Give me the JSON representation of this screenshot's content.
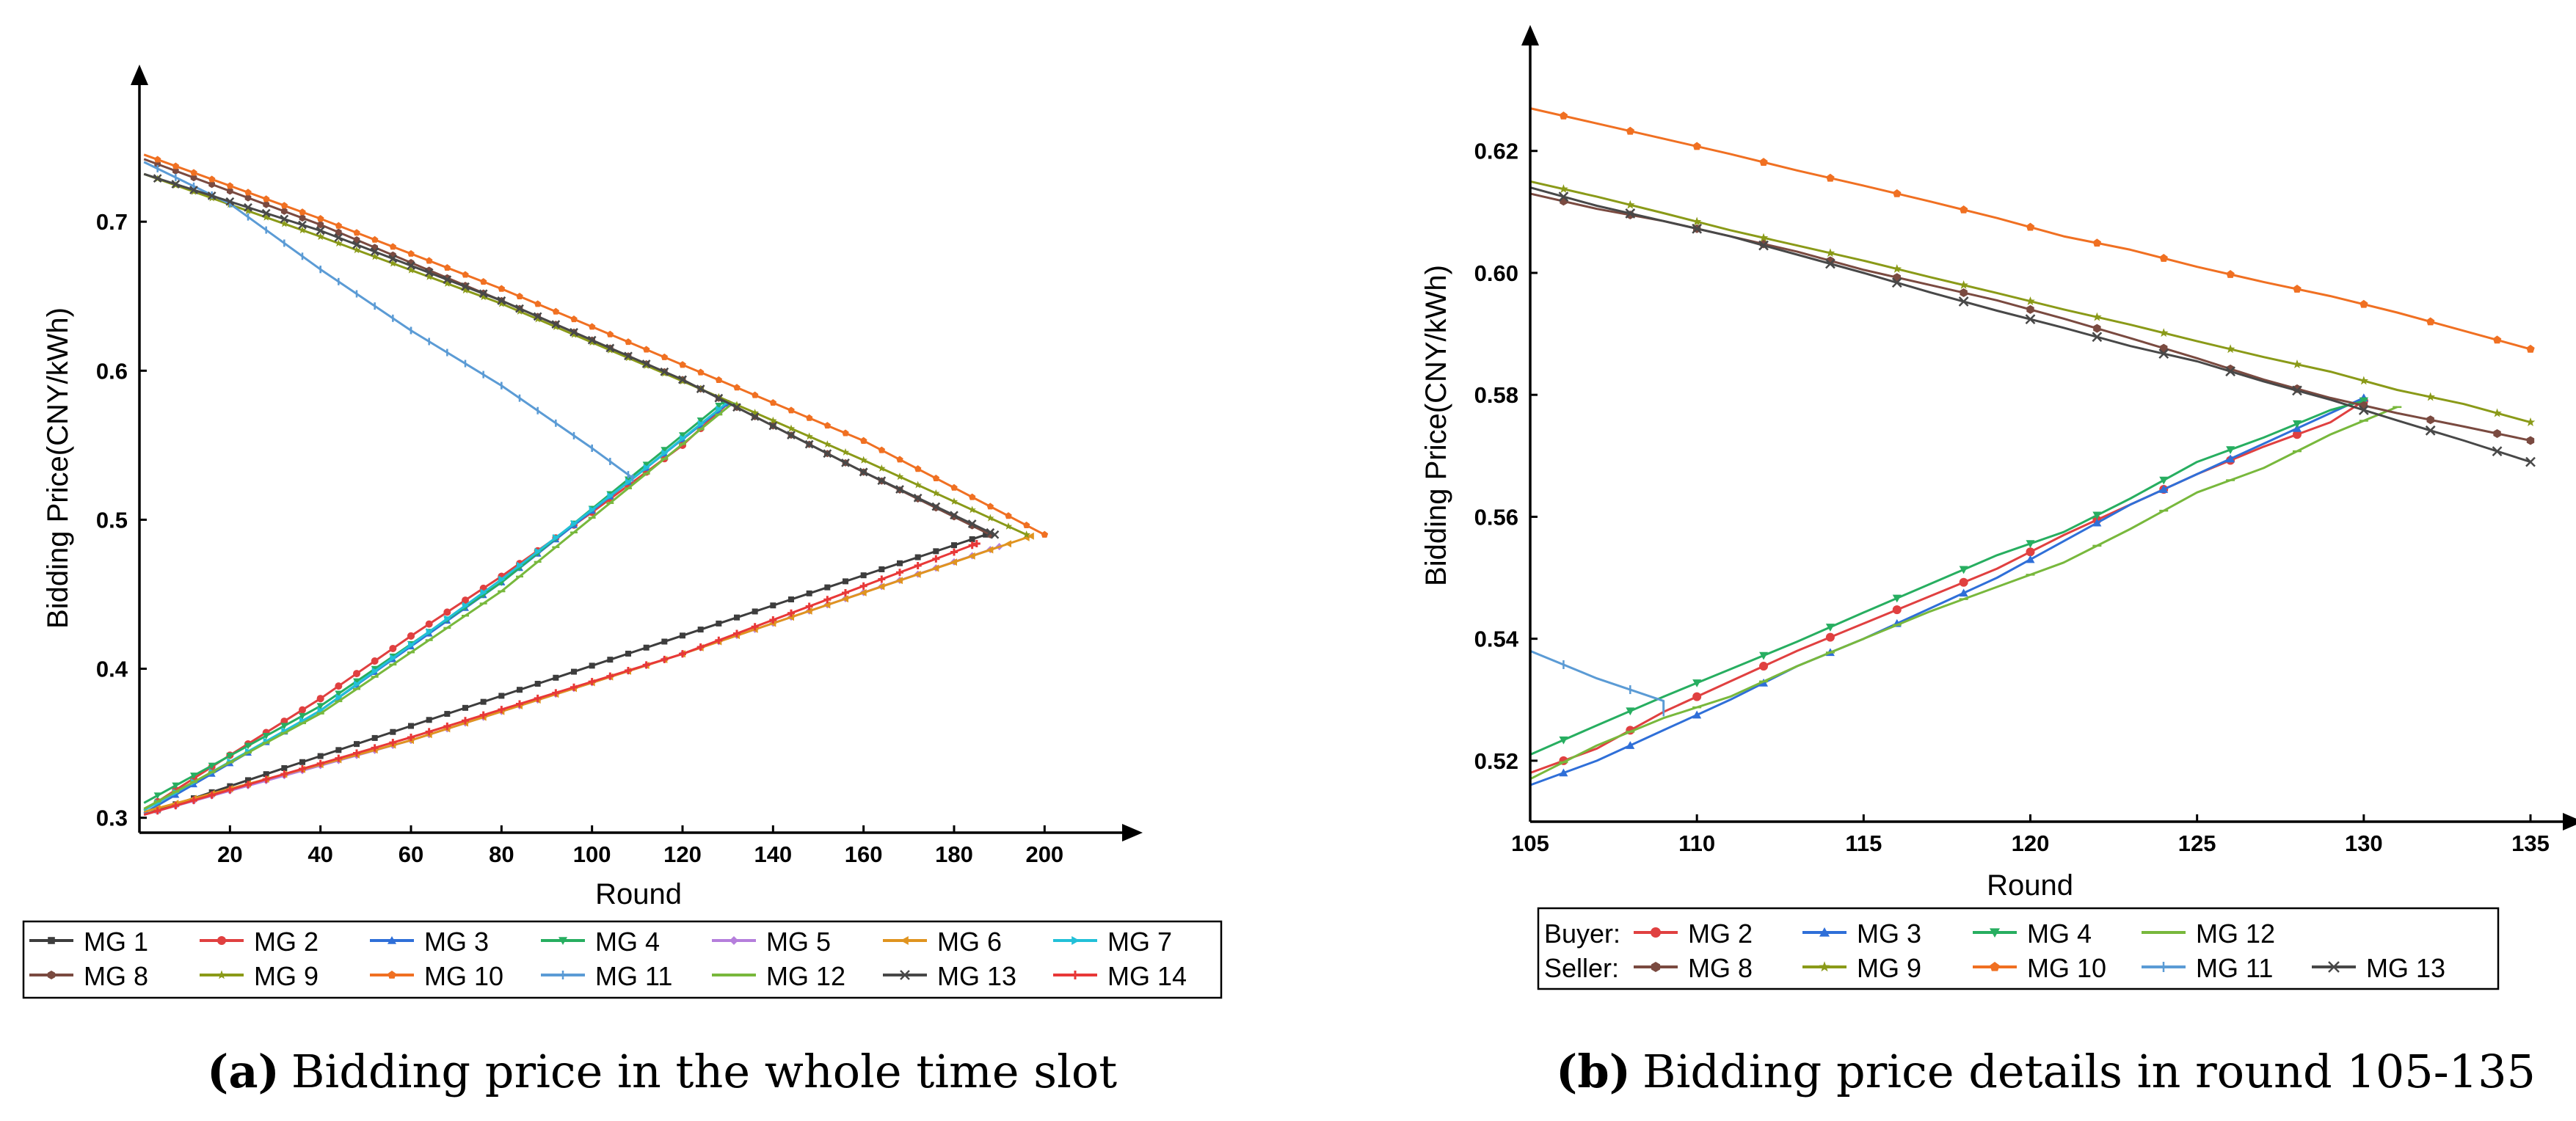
{
  "chart_data": [
    {
      "id": "a",
      "type": "line",
      "xlabel": "Round",
      "ylabel": "Bidding Price(CNY/kWh)",
      "xlim": [
        0,
        210
      ],
      "ylim": [
        0.29,
        0.77
      ],
      "xticks": [
        20,
        40,
        60,
        80,
        100,
        120,
        140,
        160,
        180,
        200
      ],
      "yticks": [
        0.3,
        0.4,
        0.5,
        0.6,
        0.7
      ],
      "xtick_labels": [
        "20",
        "40",
        "60",
        "80",
        "100",
        "120",
        "140",
        "160",
        "180",
        "200"
      ],
      "ytick_labels": [
        "0.3",
        "0.4",
        "0.5",
        "0.6",
        "0.7"
      ],
      "legend": [
        [
          "MG 1",
          "MG 2",
          "MG 3",
          "MG 4",
          "MG 5",
          "MG 6",
          "MG 7"
        ],
        [
          "MG 8",
          "MG 9",
          "MG 10",
          "MG 11",
          "MG 12",
          "MG 13",
          "MG 14"
        ]
      ],
      "series": [
        {
          "name": "MG 1",
          "color": "#3d3d3d",
          "marker": "square",
          "points": [
            [
              1,
              0.302
            ],
            [
              187,
              0.49
            ]
          ]
        },
        {
          "name": "MG 2",
          "color": "#e04040",
          "marker": "circle",
          "points": [
            [
              1,
              0.305
            ],
            [
              20,
              0.342
            ],
            [
              40,
              0.38
            ],
            [
              60,
              0.422
            ],
            [
              80,
              0.462
            ],
            [
              100,
              0.505
            ],
            [
              120,
              0.55
            ],
            [
              130,
              0.578
            ]
          ]
        },
        {
          "name": "MG 3",
          "color": "#2f6fd8",
          "marker": "triangle",
          "points": [
            [
              1,
              0.303
            ],
            [
              40,
              0.372
            ],
            [
              80,
              0.458
            ],
            [
              110,
              0.53
            ],
            [
              130,
              0.578
            ]
          ]
        },
        {
          "name": "MG 4",
          "color": "#27ae60",
          "marker": "triangle-down",
          "points": [
            [
              1,
              0.31
            ],
            [
              40,
              0.375
            ],
            [
              80,
              0.458
            ],
            [
              110,
              0.532
            ],
            [
              129,
              0.579
            ]
          ]
        },
        {
          "name": "MG 5",
          "color": "#b57edc",
          "marker": "diamond",
          "points": [
            [
              1,
              0.302
            ],
            [
              60,
              0.352
            ],
            [
              120,
              0.41
            ],
            [
              190,
              0.482
            ]
          ]
        },
        {
          "name": "MG 6",
          "color": "#e0941f",
          "marker": "triangle-left",
          "points": [
            [
              1,
              0.304
            ],
            [
              60,
              0.352
            ],
            [
              120,
              0.41
            ],
            [
              197,
              0.489
            ]
          ]
        },
        {
          "name": "MG 7",
          "color": "#22c0d8",
          "marker": "triangle-right",
          "points": [
            [
              1,
              0.305
            ],
            [
              40,
              0.372
            ],
            [
              80,
              0.46
            ],
            [
              110,
              0.53
            ],
            [
              130,
              0.579
            ]
          ]
        },
        {
          "name": "MG 8",
          "color": "#7a4a40",
          "marker": "hexagon",
          "points": [
            [
              1,
              0.742
            ],
            [
              40,
              0.698
            ],
            [
              80,
              0.647
            ],
            [
              120,
              0.594
            ],
            [
              160,
              0.532
            ],
            [
              188,
              0.49
            ]
          ]
        },
        {
          "name": "MG 9",
          "color": "#8a9a18",
          "marker": "star",
          "points": [
            [
              1,
              0.732
            ],
            [
              40,
              0.69
            ],
            [
              80,
              0.645
            ],
            [
              120,
              0.593
            ],
            [
              160,
              0.54
            ],
            [
              196,
              0.49
            ]
          ]
        },
        {
          "name": "MG 10",
          "color": "#f07022",
          "marker": "pentagon",
          "points": [
            [
              1,
              0.745
            ],
            [
              40,
              0.702
            ],
            [
              80,
              0.655
            ],
            [
              120,
              0.604
            ],
            [
              160,
              0.553
            ],
            [
              200,
              0.49
            ]
          ]
        },
        {
          "name": "MG 11",
          "color": "#5b9bd5",
          "marker": "vline",
          "points": [
            [
              1,
              0.74
            ],
            [
              20,
              0.712
            ],
            [
              40,
              0.668
            ],
            [
              60,
              0.627
            ],
            [
              80,
              0.59
            ],
            [
              100,
              0.548
            ],
            [
              109,
              0.528
            ]
          ]
        },
        {
          "name": "MG 12",
          "color": "#78b83c",
          "marker": "hline",
          "points": [
            [
              1,
              0.306
            ],
            [
              40,
              0.37
            ],
            [
              80,
              0.452
            ],
            [
              110,
              0.526
            ],
            [
              131,
              0.578
            ]
          ]
        },
        {
          "name": "MG 13",
          "color": "#484848",
          "marker": "x",
          "points": [
            [
              1,
              0.732
            ],
            [
              40,
              0.694
            ],
            [
              80,
              0.647
            ],
            [
              120,
              0.594
            ],
            [
              160,
              0.532
            ],
            [
              189,
              0.49
            ]
          ]
        },
        {
          "name": "MG 14",
          "color": "#e83838",
          "marker": "cross",
          "points": [
            [
              1,
              0.302
            ],
            [
              60,
              0.354
            ],
            [
              120,
              0.41
            ],
            [
              185,
              0.484
            ]
          ]
        }
      ]
    },
    {
      "id": "b",
      "type": "line",
      "xlabel": "Round",
      "ylabel": "Bidding Price(CNY/kWh)",
      "xlim": [
        105,
        135
      ],
      "ylim": [
        0.51,
        0.632
      ],
      "xticks": [
        105,
        110,
        115,
        120,
        125,
        130,
        135
      ],
      "yticks": [
        0.52,
        0.54,
        0.56,
        0.58,
        0.6,
        0.62
      ],
      "xtick_labels": [
        "105",
        "110",
        "115",
        "120",
        "125",
        "130",
        "135"
      ],
      "ytick_labels": [
        "0.52",
        "0.54",
        "0.56",
        "0.58",
        "0.60",
        "0.62"
      ],
      "legend_groups": [
        {
          "title": "Buyer:",
          "items": [
            "MG 2",
            "MG 3",
            "MG 4",
            "MG 12"
          ]
        },
        {
          "title": "Seller:",
          "items": [
            "MG 8",
            "MG 9",
            "MG 10",
            "MG 11",
            "MG 13"
          ]
        }
      ],
      "series": [
        {
          "name": "MG 2",
          "color": "#e04040",
          "marker": "circle",
          "points": [
            [
              105,
              0.518
            ],
            [
              107,
              0.522
            ],
            [
              109,
              0.528
            ],
            [
              111,
              0.533
            ],
            [
              113,
              0.538
            ],
            [
              115,
              0.5425
            ],
            [
              117,
              0.547
            ],
            [
              119,
              0.5515
            ],
            [
              121,
              0.557
            ],
            [
              123,
              0.562
            ],
            [
              125,
              0.567
            ],
            [
              127,
              0.5715
            ],
            [
              129,
              0.5755
            ],
            [
              130,
              0.579
            ]
          ]
        },
        {
          "name": "MG 3",
          "color": "#2f6fd8",
          "marker": "triangle",
          "points": [
            [
              105,
              0.516
            ],
            [
              107,
              0.52
            ],
            [
              109,
              0.525
            ],
            [
              111,
              0.53
            ],
            [
              113,
              0.5355
            ],
            [
              115,
              0.54
            ],
            [
              117,
              0.545
            ],
            [
              119,
              0.55
            ],
            [
              121,
              0.556
            ],
            [
              123,
              0.562
            ],
            [
              125,
              0.567
            ],
            [
              127,
              0.572
            ],
            [
              129,
              0.577
            ],
            [
              130,
              0.5795
            ]
          ]
        },
        {
          "name": "MG 4",
          "color": "#27ae60",
          "marker": "triangle-down",
          "points": [
            [
              105,
              0.521
            ],
            [
              107,
              0.5258
            ],
            [
              109,
              0.5305
            ],
            [
              111,
              0.535
            ],
            [
              113,
              0.5395
            ],
            [
              115,
              0.5443
            ],
            [
              117,
              0.549
            ],
            [
              119,
              0.5537
            ],
            [
              121,
              0.5575
            ],
            [
              123,
              0.563
            ],
            [
              125,
              0.569
            ],
            [
              127,
              0.573
            ],
            [
              129,
              0.5775
            ],
            [
              130,
              0.579
            ]
          ]
        },
        {
          "name": "MG 12",
          "color": "#78b83c",
          "marker": "hline",
          "points": [
            [
              105,
              0.517
            ],
            [
              107,
              0.5225
            ],
            [
              109,
              0.527
            ],
            [
              111,
              0.5305
            ],
            [
              113,
              0.5355
            ],
            [
              115,
              0.54
            ],
            [
              117,
              0.5445
            ],
            [
              119,
              0.5485
            ],
            [
              121,
              0.5525
            ],
            [
              123,
              0.558
            ],
            [
              125,
              0.564
            ],
            [
              127,
              0.568
            ],
            [
              129,
              0.5735
            ],
            [
              131,
              0.578
            ]
          ]
        },
        {
          "name": "MG 8",
          "color": "#7a4a40",
          "marker": "hexagon",
          "points": [
            [
              105,
              0.613
            ],
            [
              107,
              0.6105
            ],
            [
              109,
              0.6085
            ],
            [
              111,
              0.606
            ],
            [
              113,
              0.6035
            ],
            [
              115,
              0.6005
            ],
            [
              117,
              0.598
            ],
            [
              119,
              0.5955
            ],
            [
              121,
              0.5925
            ],
            [
              123,
              0.5893
            ],
            [
              125,
              0.586
            ],
            [
              127,
              0.5825
            ],
            [
              129,
              0.5795
            ],
            [
              131,
              0.577
            ],
            [
              133,
              0.5748
            ],
            [
              135,
              0.5725
            ]
          ]
        },
        {
          "name": "MG 9",
          "color": "#8a9a18",
          "marker": "star",
          "points": [
            [
              105,
              0.615
            ],
            [
              107,
              0.6125
            ],
            [
              109,
              0.6098
            ],
            [
              111,
              0.607
            ],
            [
              113,
              0.6045
            ],
            [
              115,
              0.602
            ],
            [
              117,
              0.5993
            ],
            [
              119,
              0.5967
            ],
            [
              121,
              0.594
            ],
            [
              123,
              0.5915
            ],
            [
              125,
              0.5888
            ],
            [
              127,
              0.5862
            ],
            [
              129,
              0.5838
            ],
            [
              131,
              0.5808
            ],
            [
              133,
              0.5785
            ],
            [
              135,
              0.5755
            ]
          ]
        },
        {
          "name": "MG 10",
          "color": "#f07022",
          "marker": "pentagon",
          "points": [
            [
              105,
              0.627
            ],
            [
              107,
              0.6245
            ],
            [
              109,
              0.622
            ],
            [
              111,
              0.6195
            ],
            [
              113,
              0.6168
            ],
            [
              115,
              0.6143
            ],
            [
              117,
              0.6117
            ],
            [
              119,
              0.609
            ],
            [
              121,
              0.606
            ],
            [
              123,
              0.6038
            ],
            [
              125,
              0.601
            ],
            [
              127,
              0.5985
            ],
            [
              129,
              0.5962
            ],
            [
              131,
              0.5935
            ],
            [
              133,
              0.5905
            ],
            [
              135,
              0.5875
            ]
          ]
        },
        {
          "name": "MG 11",
          "color": "#5b9bd5",
          "marker": "vline",
          "points": [
            [
              105,
              0.538
            ],
            [
              107,
              0.5335
            ],
            [
              109,
              0.5298
            ],
            [
              109,
              0.528
            ]
          ]
        },
        {
          "name": "MG 13",
          "color": "#484848",
          "marker": "x",
          "points": [
            [
              105,
              0.614
            ],
            [
              107,
              0.611
            ],
            [
              109,
              0.6085
            ],
            [
              111,
              0.606
            ],
            [
              113,
              0.603
            ],
            [
              115,
              0.6
            ],
            [
              117,
              0.5968
            ],
            [
              119,
              0.5938
            ],
            [
              121,
              0.591
            ],
            [
              123,
              0.588
            ],
            [
              125,
              0.5855
            ],
            [
              127,
              0.5822
            ],
            [
              129,
              0.5792
            ],
            [
              131,
              0.5758
            ],
            [
              133,
              0.5725
            ],
            [
              135,
              0.569
            ]
          ]
        }
      ]
    }
  ],
  "captions": {
    "a": {
      "label": "(a)",
      "text": "Bidding price in the whole time slot"
    },
    "b": {
      "label": "(b)",
      "text": "Bidding price details in round 105-135"
    }
  }
}
